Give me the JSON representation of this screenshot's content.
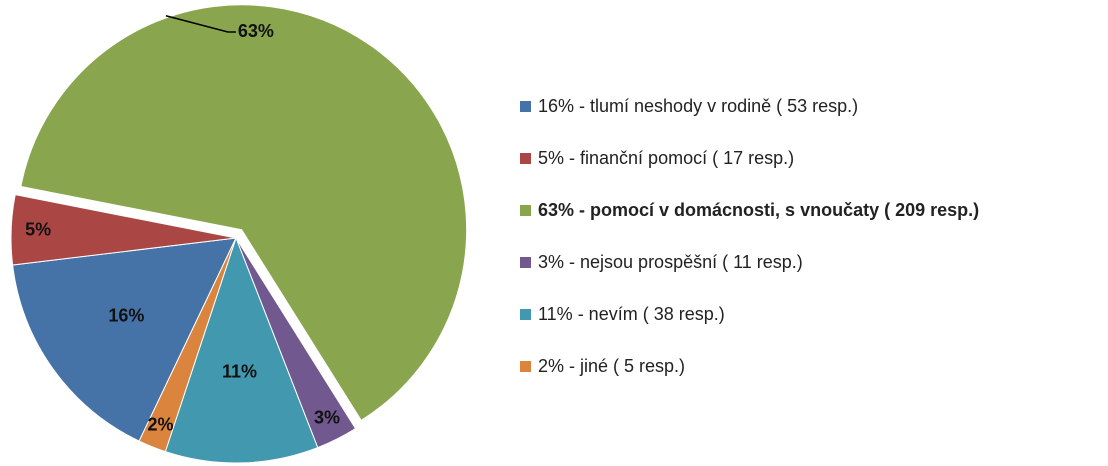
{
  "chart_data": {
    "type": "pie",
    "categories": [
      "16% - tlumí neshody v rodině ( 53 resp.)",
      "5% - finanční pomocí ( 17 resp.)",
      "63% - pomocí v domácnosti, s vnoučaty ( 209 resp.)",
      "3% - nejsou prospěšní ( 11 resp.)",
      "11% - nevím ( 38 resp.)",
      "2% - jiné ( 5 resp.)"
    ],
    "values": [
      16,
      5,
      63,
      3,
      11,
      2
    ],
    "value_labels": [
      "16%",
      "5%",
      "63%",
      "3%",
      "11%",
      "2%"
    ],
    "colors": [
      "#4572a7",
      "#aa4643",
      "#89a54e",
      "#71588f",
      "#4198af",
      "#db843d"
    ],
    "legend": "right"
  }
}
